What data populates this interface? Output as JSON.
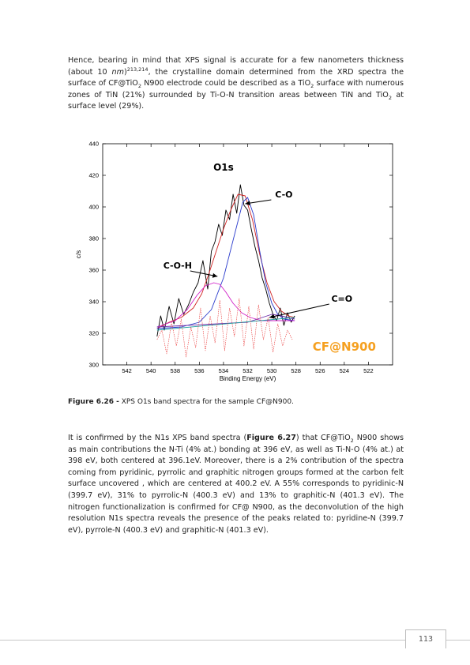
{
  "paragraph1": {
    "a": "Hence, bearing in mind that XPS signal is accurate for a few nanometers thickness (about 10 ",
    "nm": "nm",
    "b": ")",
    "cite": "213,214",
    "c": ", the crystalline domain determined from the XRD spectra the surface of CF@TiO",
    "d": " N900 electrode could be described as a TiO",
    "e": " surface with numerous zones of TiN (21%) surrounded by Ti-O-N transition areas between TiN and TiO",
    "f": " at surface level (29%).",
    "sub2": "2"
  },
  "caption": {
    "label": "Figure 6.26 -",
    "text": " XPS O1s band spectra for the sample CF@N900."
  },
  "paragraph2": {
    "a": "It is confirmed by the N1s XPS band spectra (",
    "ref": "Figure 6.27",
    "b": ") that CF@TiO",
    "sub2": "2",
    "c": " N900 shows as main contributions the N-Ti (4% at.) bonding at 396 eV, as well as Ti-N-O (4% at.) at 398 eV, both centered at 396.1eV. Moreover, there is a 2% contribution of the spectra coming from pyridinic, pyrrolic and graphitic nitrogen groups formed at the carbon felt surface uncovered , which are centered at 400.2 eV. A 55% corresponds to pyridinic-N (399.7 eV), 31% to pyrrolic-N (400.3 eV) and 13% to graphitic-N (401.3 eV). The nitrogen functionalization is confirmed for CF@ N900, as the deconvolution of the high resolution N1s spectra reveals the presence of the peaks related to: pyridine-N (399.7 eV), pyrrole-N (400.3 eV) and graphitic-N (401.3 eV)."
  },
  "page_number": "113",
  "chart_data": {
    "type": "line",
    "title": "O1s",
    "xlabel": "Binding Energy (eV)",
    "ylabel": "c/s",
    "xlim": [
      544,
      520
    ],
    "ylim": [
      300,
      440
    ],
    "xticks": [
      542,
      540,
      538,
      536,
      534,
      532,
      530,
      528,
      526,
      524,
      522
    ],
    "yticks": [
      300,
      320,
      340,
      360,
      380,
      400,
      420,
      440
    ],
    "grid": false,
    "sample_label": "CF@N900",
    "sample_label_color": "#f5a020",
    "annotations": [
      {
        "text": "C-O",
        "x": 529.0,
        "y": 406
      },
      {
        "text": "C-O-H",
        "x": 537.8,
        "y": 361
      },
      {
        "text": "C=O",
        "x": 524.2,
        "y": 340
      }
    ],
    "series": [
      {
        "color": "#000000",
        "x": [
          539.5,
          539.2,
          538.9,
          538.5,
          538.1,
          537.7,
          537.3,
          536.9,
          536.5,
          536.1,
          535.7,
          535.3,
          535.0,
          534.7,
          534.4,
          534.1,
          533.8,
          533.5,
          533.2,
          532.9,
          532.6,
          532.3,
          532.0,
          531.7,
          531.4,
          531.1,
          530.8,
          530.5,
          530.2,
          529.9,
          529.6,
          529.3,
          529.0,
          528.7,
          528.4,
          528.1
        ],
        "values": [
          318,
          331,
          322,
          337,
          326,
          342,
          332,
          338,
          346,
          352,
          366,
          348,
          372,
          378,
          389,
          382,
          398,
          392,
          408,
          396,
          414,
          401,
          398,
          386,
          375,
          366,
          355,
          348,
          339,
          332,
          328,
          336,
          325,
          333,
          327,
          331
        ]
      },
      {
        "color": "#d02020",
        "x": [
          539.5,
          538.5,
          537.5,
          536.5,
          535.8,
          535.2,
          534.6,
          534.0,
          533.4,
          532.8,
          532.2,
          531.6,
          531.0,
          530.4,
          529.8,
          529.2,
          528.6,
          528.1
        ],
        "values": [
          323,
          327,
          330,
          336,
          345,
          358,
          372,
          386,
          398,
          408,
          407,
          392,
          370,
          352,
          340,
          334,
          331,
          330
        ]
      },
      {
        "color": "#2a3bcc",
        "x": [
          539.5,
          537.5,
          536.0,
          535.0,
          534.0,
          533.0,
          532.4,
          532.0,
          531.5,
          531.0,
          530.5,
          530.0,
          529.5,
          529.0,
          528.1
        ],
        "values": [
          323,
          324,
          327,
          335,
          355,
          385,
          403,
          406,
          395,
          372,
          352,
          339,
          332,
          329,
          328
        ]
      },
      {
        "color": "#d020c8",
        "x": [
          539.5,
          538.0,
          537.0,
          536.2,
          535.5,
          534.8,
          534.3,
          533.8,
          533.2,
          532.5,
          531.8,
          530.8,
          529.6,
          528.1
        ],
        "values": [
          324,
          328,
          335,
          344,
          350,
          352,
          351,
          346,
          339,
          333,
          330,
          328,
          328,
          328
        ]
      },
      {
        "color": "#6b2aa8",
        "x": [
          539.5,
          532.0,
          530.8,
          530.0,
          529.2,
          528.1
        ],
        "values": [
          324,
          327,
          330,
          332,
          331,
          329
        ]
      },
      {
        "color": "#20a0a0",
        "x": [
          539.5,
          528.1
        ],
        "values": [
          322,
          330
        ]
      },
      {
        "color": "#e83030",
        "dashed": true,
        "x": [
          539.5,
          539.1,
          538.7,
          538.3,
          537.9,
          537.5,
          537.1,
          536.7,
          536.3,
          535.9,
          535.5,
          535.1,
          534.7,
          534.3,
          533.9,
          533.5,
          533.1,
          532.7,
          532.3,
          531.9,
          531.5,
          531.1,
          530.7,
          530.3,
          529.9,
          529.5,
          529.1,
          528.7,
          528.3
        ],
        "values": [
          316,
          322,
          307,
          327,
          312,
          329,
          305,
          324,
          311,
          336,
          309,
          331,
          314,
          341,
          309,
          336,
          318,
          342,
          312,
          337,
          310,
          338,
          316,
          330,
          308,
          326,
          312,
          322,
          316
        ]
      }
    ]
  }
}
